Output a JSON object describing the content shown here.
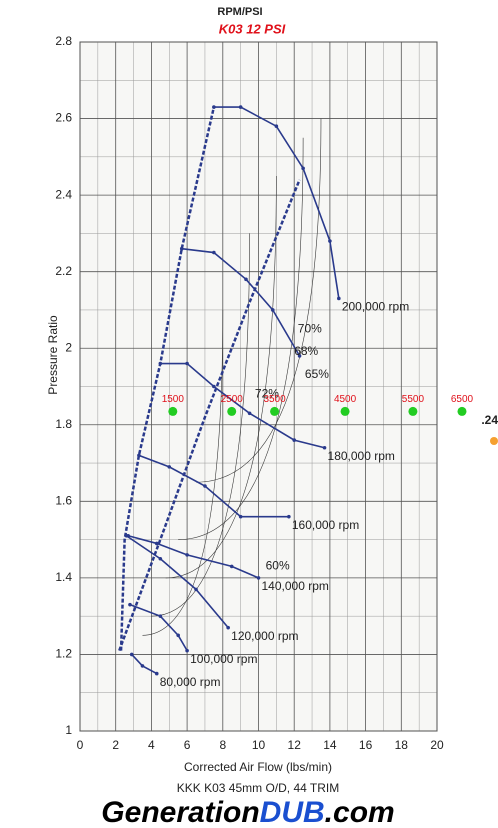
{
  "chart_data": {
    "type": "compressor_map",
    "header": "RPM/PSI",
    "title": "K03   12 PSI",
    "x_label": "Corrected Air Flow (lbs/min)",
    "y_label": "Pressure Ratio",
    "caption": "KKK K03 45mm O/D, 44 TRIM",
    "logo": [
      "Generation",
      "DUB",
      ".com"
    ],
    "xlim": [
      0,
      20
    ],
    "ylim": [
      1,
      2.8
    ],
    "xticks": [
      0,
      2,
      4,
      6,
      8,
      10,
      12,
      14,
      16,
      18,
      20
    ],
    "yticks": [
      1,
      1.2,
      1.4,
      1.6,
      1.8,
      2,
      2.2,
      2.4,
      2.6,
      2.8
    ],
    "grid": true,
    "line_color": "#2a3a8c",
    "speed_lines": [
      {
        "name": "80,000 rpm",
        "x": [
          2.9,
          3.5,
          4.3
        ],
        "y": [
          1.2,
          1.17,
          1.15
        ]
      },
      {
        "name": "100,000 rpm",
        "x": [
          2.8,
          4.5,
          5.5,
          6.0
        ],
        "y": [
          1.33,
          1.3,
          1.25,
          1.21
        ]
      },
      {
        "name": "120,000 rpm",
        "x": [
          2.6,
          4.5,
          6.5,
          8.3
        ],
        "y": [
          1.51,
          1.45,
          1.37,
          1.27
        ]
      },
      {
        "name": "140,000 rpm",
        "x": [
          2.7,
          4.3,
          6.0,
          8.5,
          10.0
        ],
        "y": [
          1.51,
          1.49,
          1.46,
          1.43,
          1.4
        ]
      },
      {
        "name": "160,000 rpm",
        "x": [
          3.3,
          5.0,
          7.0,
          9.0,
          11.7
        ],
        "y": [
          1.72,
          1.69,
          1.64,
          1.56,
          1.56
        ]
      },
      {
        "name": "180,000 rpm",
        "x": [
          4.5,
          6.0,
          7.5,
          9.5,
          12.0,
          13.7
        ],
        "y": [
          1.96,
          1.96,
          1.9,
          1.83,
          1.76,
          1.74
        ]
      },
      {
        "x": [
          5.7,
          7.5,
          9.3,
          10.8,
          12.3
        ],
        "y": [
          2.26,
          2.25,
          2.18,
          2.1,
          1.98
        ]
      },
      {
        "name": "200,000 rpm",
        "x": [
          7.5,
          9.0,
          11.0,
          12.5,
          14.0,
          14.5
        ],
        "y": [
          2.63,
          2.63,
          2.58,
          2.47,
          2.28,
          2.13
        ]
      }
    ],
    "surge_line": {
      "x": [
        2.3,
        2.5,
        3.3,
        4.5,
        5.7,
        7.5
      ],
      "y": [
        1.21,
        1.5,
        1.72,
        1.96,
        2.26,
        2.63
      ]
    },
    "operating_line": {
      "x": [
        2.2,
        4.5,
        7.0,
        9.5,
        12.3
      ],
      "y": [
        1.21,
        1.5,
        1.82,
        2.12,
        2.44
      ]
    },
    "efficiency_labels": [
      {
        "label": "60%",
        "x": 10.4,
        "y": 1.43
      },
      {
        "label": "65%",
        "x": 12.6,
        "y": 1.93
      },
      {
        "label": "68%",
        "x": 12.0,
        "y": 1.99
      },
      {
        "label": "70%",
        "x": 12.2,
        "y": 2.05
      },
      {
        "label": "72%",
        "x": 9.8,
        "y": 1.88
      }
    ],
    "rpm_points": {
      "color": "#22cc22",
      "label_color": "#e0101a",
      "labels": [
        "1500",
        "2500",
        "3500",
        "4500",
        "5500",
        "6500"
      ],
      "x": [
        5.2,
        8.5,
        10.9,
        14.85,
        18.65,
        21.4
      ],
      "y": [
        1.835,
        1.835,
        1.835,
        1.835,
        1.835,
        1.835
      ]
    },
    "side_note": ".24"
  }
}
